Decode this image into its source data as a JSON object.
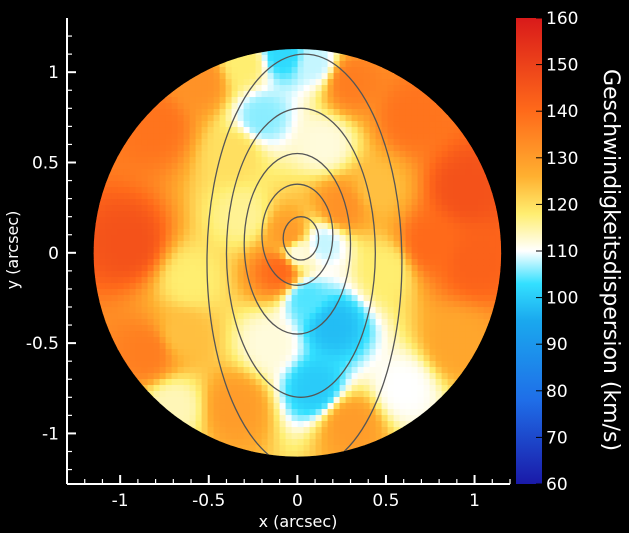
{
  "chart_data": {
    "type": "heatmap",
    "xlabel": "x (arcsec)",
    "ylabel": "y (arcsec)",
    "xlim": [
      -1.3,
      1.2
    ],
    "ylim": [
      -1.28,
      1.3
    ],
    "x_ticks": [
      {
        "v": -1,
        "label": "-1"
      },
      {
        "v": -0.5,
        "label": "-0.5"
      },
      {
        "v": 0,
        "label": "0"
      },
      {
        "v": 0.5,
        "label": "0.5"
      },
      {
        "v": 1,
        "label": "1"
      }
    ],
    "y_ticks": [
      {
        "v": -1,
        "label": "-1"
      },
      {
        "v": -0.5,
        "label": "-0.5"
      },
      {
        "v": 0,
        "label": "0"
      },
      {
        "v": 0.5,
        "label": "0.5"
      },
      {
        "v": 1,
        "label": "1"
      }
    ],
    "field_radius_arcsec": 1.15,
    "colorbar": {
      "title": "Geschwindigkeitsdispersion (km/s)",
      "range": [
        60,
        160
      ],
      "ticks": [
        60,
        70,
        80,
        90,
        100,
        110,
        120,
        130,
        140,
        150,
        160
      ],
      "colormap": [
        {
          "v": 60,
          "color": "#1a1aa8"
        },
        {
          "v": 78,
          "color": "#1f6ee8"
        },
        {
          "v": 95,
          "color": "#1aa8ee"
        },
        {
          "v": 103,
          "color": "#33e0ff"
        },
        {
          "v": 110,
          "color": "#ffffff"
        },
        {
          "v": 118,
          "color": "#ffee70"
        },
        {
          "v": 126,
          "color": "#ffb030"
        },
        {
          "v": 140,
          "color": "#ff6a1a"
        },
        {
          "v": 160,
          "color": "#d91a1a"
        }
      ]
    },
    "field_samples": [
      {
        "x": 0,
        "y": 0,
        "v": 112
      },
      {
        "x": -0.95,
        "y": 0.05,
        "v": 146
      },
      {
        "x": -0.8,
        "y": 0.7,
        "v": 138
      },
      {
        "x": -0.55,
        "y": 0.95,
        "v": 132
      },
      {
        "x": -0.3,
        "y": 1.05,
        "v": 118
      },
      {
        "x": -0.08,
        "y": 1.1,
        "v": 102
      },
      {
        "x": 0.1,
        "y": 1.05,
        "v": 108
      },
      {
        "x": 0.3,
        "y": 0.95,
        "v": 136
      },
      {
        "x": 0.65,
        "y": 0.75,
        "v": 138
      },
      {
        "x": 0.95,
        "y": 0.35,
        "v": 146
      },
      {
        "x": 1.0,
        "y": -0.05,
        "v": 142
      },
      {
        "x": 0.9,
        "y": -0.5,
        "v": 128
      },
      {
        "x": 0.6,
        "y": -0.75,
        "v": 110
      },
      {
        "x": 0.3,
        "y": -0.95,
        "v": 130
      },
      {
        "x": 0.1,
        "y": -0.75,
        "v": 100
      },
      {
        "x": 0.2,
        "y": -0.4,
        "v": 98
      },
      {
        "x": -0.15,
        "y": -0.5,
        "v": 112
      },
      {
        "x": -0.35,
        "y": -0.85,
        "v": 130
      },
      {
        "x": -0.7,
        "y": -0.85,
        "v": 114
      },
      {
        "x": -0.65,
        "y": -0.45,
        "v": 124
      },
      {
        "x": -0.6,
        "y": -0.15,
        "v": 118
      },
      {
        "x": -0.3,
        "y": 0.2,
        "v": 116
      },
      {
        "x": -0.05,
        "y": 0.1,
        "v": 130
      },
      {
        "x": 0.15,
        "y": 0.05,
        "v": 108
      },
      {
        "x": 0.25,
        "y": 0.25,
        "v": 132
      },
      {
        "x": 0.45,
        "y": 0.35,
        "v": 124
      },
      {
        "x": 0.5,
        "y": -0.1,
        "v": 118
      },
      {
        "x": -0.1,
        "y": -0.1,
        "v": 140
      },
      {
        "x": 0.05,
        "y": -0.25,
        "v": 104
      },
      {
        "x": -0.35,
        "y": 0.55,
        "v": 120
      },
      {
        "x": 0.15,
        "y": 0.6,
        "v": 112
      },
      {
        "x": -0.2,
        "y": 0.75,
        "v": 106
      },
      {
        "x": -0.85,
        "y": -0.55,
        "v": 136
      },
      {
        "x": 0.75,
        "y": 0.05,
        "v": 140
      }
    ],
    "contour_levels": [
      {
        "cx": 0.02,
        "cy": 0.08,
        "a": 0.1,
        "b": 0.12
      },
      {
        "cx": 0.0,
        "cy": 0.1,
        "a": 0.2,
        "b": 0.28
      },
      {
        "cx": 0.0,
        "cy": 0.05,
        "a": 0.3,
        "b": 0.5
      },
      {
        "cx": 0.02,
        "cy": 0.0,
        "a": 0.42,
        "b": 0.8
      },
      {
        "cx": 0.04,
        "cy": -0.05,
        "a": 0.55,
        "b": 1.15
      }
    ]
  }
}
